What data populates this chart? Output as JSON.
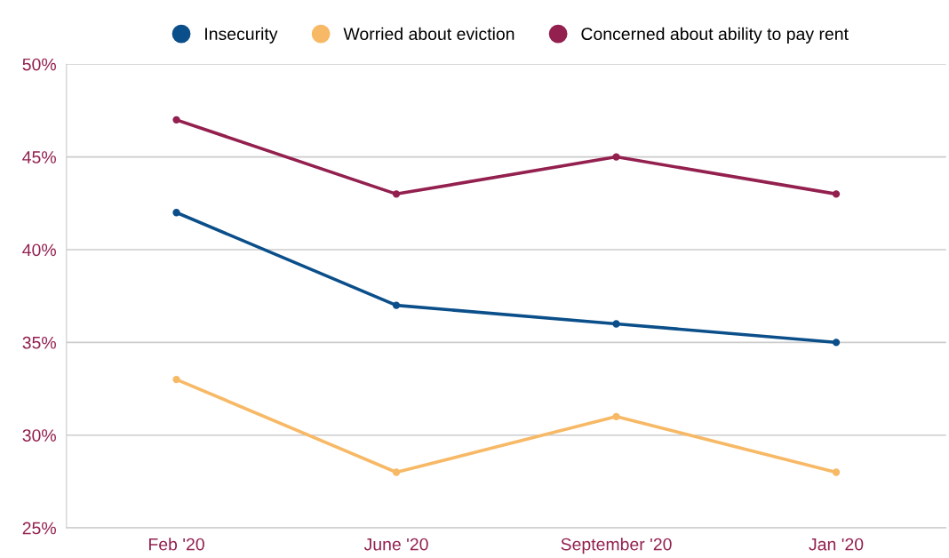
{
  "chart_data": {
    "type": "line",
    "categories": [
      "Feb '20",
      "June '20",
      "September '20",
      "Jan '20"
    ],
    "series": [
      {
        "name": "Insecurity",
        "color": "#0b4f8a",
        "values": [
          42,
          37,
          36,
          35
        ]
      },
      {
        "name": "Worried about eviction",
        "color": "#f7b966",
        "values": [
          33,
          28,
          31,
          28
        ]
      },
      {
        "name": "Concerned about ability to pay rent",
        "color": "#93204f",
        "values": [
          47,
          43,
          45,
          43
        ]
      }
    ],
    "ylim": [
      25,
      50
    ],
    "yticks": [
      {
        "value": 25,
        "label": "25%"
      },
      {
        "value": 30,
        "label": "30%"
      },
      {
        "value": 35,
        "label": "35%"
      },
      {
        "value": 40,
        "label": "40%"
      },
      {
        "value": 45,
        "label": "45%"
      },
      {
        "value": 50,
        "label": "50%"
      }
    ],
    "grid": "y",
    "legend": "top",
    "marker": "circle",
    "line_style": "solid"
  }
}
